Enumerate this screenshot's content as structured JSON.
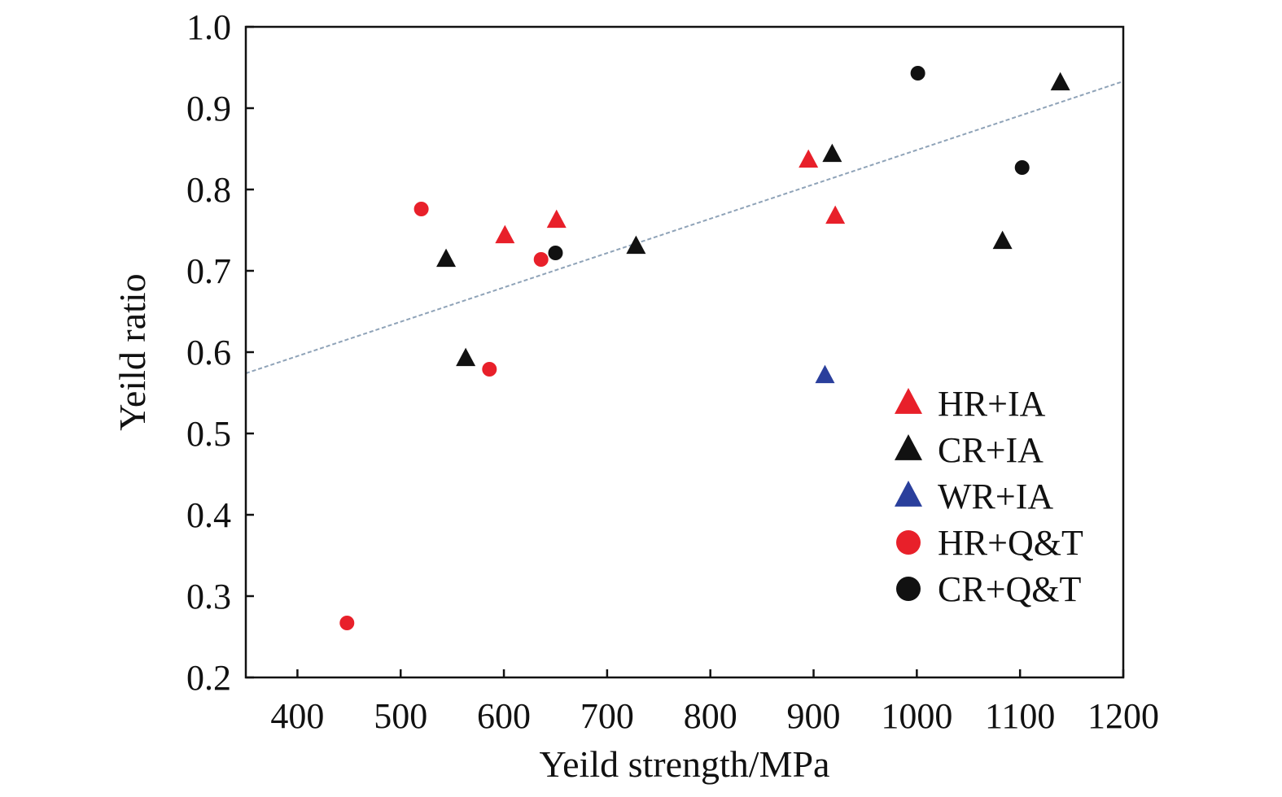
{
  "chart_data": {
    "type": "scatter",
    "title": "",
    "xlabel": "Yeild strength/MPa",
    "ylabel": "Yeild ratio",
    "xlim": [
      350,
      1200
    ],
    "ylim": [
      0.2,
      1.0
    ],
    "xticks": [
      400,
      500,
      600,
      700,
      800,
      900,
      1000,
      1100,
      1200
    ],
    "yticks": [
      "0.2",
      "0.3",
      "0.4",
      "0.5",
      "0.6",
      "0.7",
      "0.8",
      "0.9",
      "1.0"
    ],
    "grid": false,
    "legend_position": "bottom-right",
    "series": [
      {
        "name": "HR+IA",
        "marker": "triangle",
        "color": "#e8202a",
        "points": [
          [
            601,
            0.743
          ],
          [
            651,
            0.762
          ],
          [
            895,
            0.836
          ],
          [
            921,
            0.767
          ]
        ]
      },
      {
        "name": "CR+IA",
        "marker": "triangle",
        "color": "#111111",
        "points": [
          [
            544,
            0.714
          ],
          [
            563,
            0.592
          ],
          [
            728,
            0.73
          ],
          [
            918,
            0.843
          ],
          [
            1083,
            0.736
          ],
          [
            1139,
            0.931
          ]
        ]
      },
      {
        "name": "WR+IA",
        "marker": "triangle",
        "color": "#2a3f9c",
        "points": [
          [
            911,
            0.571
          ]
        ]
      },
      {
        "name": "HR+Q&T",
        "marker": "circle",
        "color": "#e8202a",
        "points": [
          [
            448,
            0.267
          ],
          [
            520,
            0.776
          ],
          [
            586,
            0.579
          ],
          [
            636,
            0.714
          ]
        ]
      },
      {
        "name": "CR+Q&T",
        "marker": "circle",
        "color": "#111111",
        "points": [
          [
            650,
            0.722
          ],
          [
            1001,
            0.943
          ],
          [
            1102,
            0.827
          ]
        ]
      }
    ],
    "trendline": {
      "style": "dashed",
      "color": "#8fa3b8",
      "points": [
        [
          350,
          0.574
        ],
        [
          1200,
          0.933
        ]
      ]
    }
  }
}
